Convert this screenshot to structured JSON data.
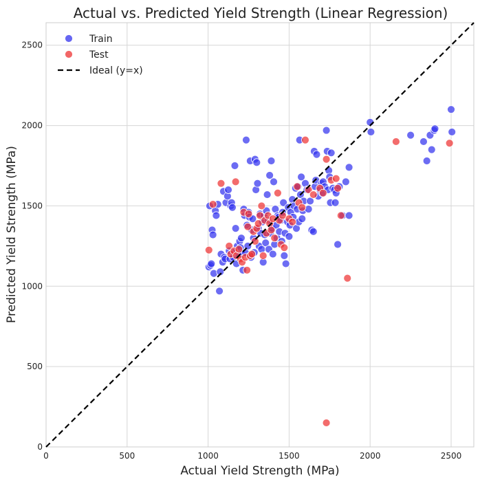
{
  "chart_data": {
    "type": "scatter",
    "title": "Actual vs. Predicted Yield Strength (Linear Regression)",
    "xlabel": "Actual Yield Strength (MPa)",
    "ylabel": "Predicted Yield Strength (MPa)",
    "xlim": [
      0,
      2640
    ],
    "ylim": [
      0,
      2640
    ],
    "xticks": [
      0,
      500,
      1000,
      1500,
      2000,
      2500
    ],
    "yticks": [
      0,
      500,
      1000,
      1500,
      2000,
      2500
    ],
    "grid": true,
    "legend_position": "top-left",
    "series": [
      {
        "name": "Train",
        "color": "#3333ee",
        "points": [
          [
            1005,
            1120
          ],
          [
            1010,
            1500
          ],
          [
            1015,
            1130
          ],
          [
            1020,
            1140
          ],
          [
            1025,
            1350
          ],
          [
            1030,
            1320
          ],
          [
            1035,
            1080
          ],
          [
            1045,
            1470
          ],
          [
            1050,
            1440
          ],
          [
            1060,
            1510
          ],
          [
            1070,
            970
          ],
          [
            1075,
            1090
          ],
          [
            1080,
            1200
          ],
          [
            1090,
            1150
          ],
          [
            1095,
            1590
          ],
          [
            1100,
            1180
          ],
          [
            1105,
            1170
          ],
          [
            1110,
            1520
          ],
          [
            1120,
            1560
          ],
          [
            1125,
            1600
          ],
          [
            1130,
            1220
          ],
          [
            1135,
            1170
          ],
          [
            1140,
            1500
          ],
          [
            1145,
            1520
          ],
          [
            1150,
            1490
          ],
          [
            1155,
            1180
          ],
          [
            1160,
            1210
          ],
          [
            1165,
            1750
          ],
          [
            1170,
            1360
          ],
          [
            1175,
            1140
          ],
          [
            1180,
            1250
          ],
          [
            1190,
            1200
          ],
          [
            1195,
            1280
          ],
          [
            1200,
            1240
          ],
          [
            1205,
            1300
          ],
          [
            1210,
            1200
          ],
          [
            1215,
            1100
          ],
          [
            1220,
            1480
          ],
          [
            1225,
            1440
          ],
          [
            1230,
            1210
          ],
          [
            1235,
            1910
          ],
          [
            1240,
            1380
          ],
          [
            1245,
            1250
          ],
          [
            1250,
            1460
          ],
          [
            1255,
            1430
          ],
          [
            1260,
            1780
          ],
          [
            1265,
            1180
          ],
          [
            1270,
            1350
          ],
          [
            1275,
            1420
          ],
          [
            1280,
            1300
          ],
          [
            1285,
            1210
          ],
          [
            1290,
            1790
          ],
          [
            1295,
            1600
          ],
          [
            1300,
            1770
          ],
          [
            1305,
            1640
          ],
          [
            1310,
            1360
          ],
          [
            1315,
            1250
          ],
          [
            1320,
            1450
          ],
          [
            1325,
            1330
          ],
          [
            1330,
            1230
          ],
          [
            1335,
            1400
          ],
          [
            1340,
            1150
          ],
          [
            1345,
            1440
          ],
          [
            1350,
            1320
          ],
          [
            1355,
            1270
          ],
          [
            1360,
            1470
          ],
          [
            1365,
            1570
          ],
          [
            1370,
            1410
          ],
          [
            1375,
            1230
          ],
          [
            1380,
            1690
          ],
          [
            1385,
            1330
          ],
          [
            1390,
            1780
          ],
          [
            1395,
            1360
          ],
          [
            1400,
            1200
          ],
          [
            1405,
            1650
          ],
          [
            1410,
            1260
          ],
          [
            1415,
            1480
          ],
          [
            1420,
            1380
          ],
          [
            1425,
            1300
          ],
          [
            1430,
            1440
          ],
          [
            1435,
            1430
          ],
          [
            1440,
            1340
          ],
          [
            1450,
            1410
          ],
          [
            1455,
            1280
          ],
          [
            1460,
            1460
          ],
          [
            1465,
            1520
          ],
          [
            1470,
            1190
          ],
          [
            1475,
            1330
          ],
          [
            1480,
            1140
          ],
          [
            1490,
            1400
          ],
          [
            1495,
            1490
          ],
          [
            1500,
            1310
          ],
          [
            1505,
            1380
          ],
          [
            1510,
            1460
          ],
          [
            1520,
            1540
          ],
          [
            1525,
            1430
          ],
          [
            1530,
            1500
          ],
          [
            1540,
            1610
          ],
          [
            1545,
            1360
          ],
          [
            1550,
            1480
          ],
          [
            1555,
            1620
          ],
          [
            1560,
            1400
          ],
          [
            1565,
            1910
          ],
          [
            1570,
            1570
          ],
          [
            1575,
            1680
          ],
          [
            1580,
            1420
          ],
          [
            1585,
            1470
          ],
          [
            1590,
            1530
          ],
          [
            1600,
            1640
          ],
          [
            1610,
            1600
          ],
          [
            1620,
            1480
          ],
          [
            1630,
            1530
          ],
          [
            1640,
            1350
          ],
          [
            1650,
            1340
          ],
          [
            1655,
            1840
          ],
          [
            1660,
            1620
          ],
          [
            1665,
            1660
          ],
          [
            1670,
            1820
          ],
          [
            1680,
            1560
          ],
          [
            1690,
            1600
          ],
          [
            1700,
            1640
          ],
          [
            1705,
            1580
          ],
          [
            1710,
            1650
          ],
          [
            1720,
            1620
          ],
          [
            1730,
            1970
          ],
          [
            1735,
            1840
          ],
          [
            1740,
            1600
          ],
          [
            1745,
            1720
          ],
          [
            1750,
            1680
          ],
          [
            1755,
            1520
          ],
          [
            1760,
            1830
          ],
          [
            1770,
            1610
          ],
          [
            1780,
            1600
          ],
          [
            1785,
            1520
          ],
          [
            1790,
            1580
          ],
          [
            1800,
            1260
          ],
          [
            1810,
            1620
          ],
          [
            1830,
            1440
          ],
          [
            1850,
            1650
          ],
          [
            1870,
            1440
          ],
          [
            1870,
            1740
          ],
          [
            2000,
            2020
          ],
          [
            2005,
            1960
          ],
          [
            2250,
            1940
          ],
          [
            2330,
            1900
          ],
          [
            2350,
            1780
          ],
          [
            2370,
            1940
          ],
          [
            2380,
            1850
          ],
          [
            2395,
            1970
          ],
          [
            2400,
            1980
          ],
          [
            2500,
            2100
          ],
          [
            2505,
            1960
          ]
        ]
      },
      {
        "name": "Test",
        "color": "#ee3333",
        "points": [
          [
            1005,
            1225
          ],
          [
            1030,
            1510
          ],
          [
            1080,
            1640
          ],
          [
            1130,
            1250
          ],
          [
            1140,
            1200
          ],
          [
            1160,
            1220
          ],
          [
            1170,
            1650
          ],
          [
            1175,
            1190
          ],
          [
            1190,
            1230
          ],
          [
            1200,
            1170
          ],
          [
            1210,
            1150
          ],
          [
            1220,
            1460
          ],
          [
            1230,
            1180
          ],
          [
            1240,
            1100
          ],
          [
            1245,
            1370
          ],
          [
            1250,
            1450
          ],
          [
            1260,
            1190
          ],
          [
            1270,
            1200
          ],
          [
            1280,
            1340
          ],
          [
            1290,
            1280
          ],
          [
            1300,
            1360
          ],
          [
            1310,
            1390
          ],
          [
            1320,
            1440
          ],
          [
            1330,
            1500
          ],
          [
            1340,
            1190
          ],
          [
            1350,
            1410
          ],
          [
            1360,
            1330
          ],
          [
            1370,
            1440
          ],
          [
            1380,
            1390
          ],
          [
            1390,
            1350
          ],
          [
            1400,
            1420
          ],
          [
            1410,
            1300
          ],
          [
            1430,
            1580
          ],
          [
            1440,
            1410
          ],
          [
            1450,
            1260
          ],
          [
            1460,
            1440
          ],
          [
            1470,
            1240
          ],
          [
            1500,
            1420
          ],
          [
            1520,
            1400
          ],
          [
            1550,
            1620
          ],
          [
            1560,
            1520
          ],
          [
            1580,
            1490
          ],
          [
            1600,
            1910
          ],
          [
            1620,
            1600
          ],
          [
            1650,
            1570
          ],
          [
            1690,
            1610
          ],
          [
            1710,
            1580
          ],
          [
            1730,
            1790
          ],
          [
            1760,
            1660
          ],
          [
            1790,
            1670
          ],
          [
            1800,
            1610
          ],
          [
            1820,
            1440
          ],
          [
            1860,
            1050
          ],
          [
            2160,
            1900
          ],
          [
            2490,
            1890
          ],
          [
            1730,
            150
          ]
        ]
      },
      {
        "name": "Ideal (y=x)",
        "color": "#000000",
        "kind": "line",
        "points": [
          [
            0,
            0
          ],
          [
            2640,
            2640
          ]
        ]
      }
    ]
  }
}
